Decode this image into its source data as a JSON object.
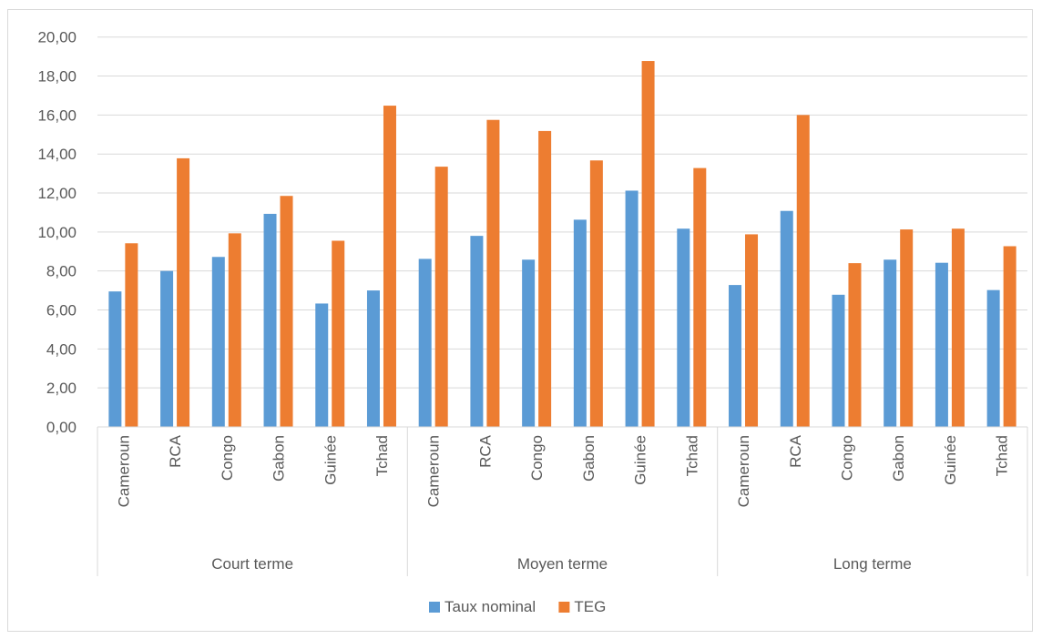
{
  "chart_data": {
    "type": "bar",
    "title": "",
    "xlabel": "",
    "ylabel": "",
    "ylim": [
      0,
      20
    ],
    "yticks": [
      "0,00",
      "2,00",
      "4,00",
      "6,00",
      "8,00",
      "10,00",
      "12,00",
      "14,00",
      "16,00",
      "18,00",
      "20,00"
    ],
    "grid": true,
    "legend_position": "bottom",
    "groups": [
      {
        "name": "Court terme",
        "categories": [
          "Cameroun",
          "RCA",
          "Congo",
          "Gabon",
          "Guinée",
          "Tchad"
        ]
      },
      {
        "name": "Moyen terme",
        "categories": [
          "Cameroun",
          "RCA",
          "Congo",
          "Gabon",
          "Guinée",
          "Tchad"
        ]
      },
      {
        "name": "Long terme",
        "categories": [
          "Cameroun",
          "RCA",
          "Congo",
          "Gabon",
          "Guinée",
          "Tchad"
        ]
      }
    ],
    "series": [
      {
        "name": "Taux nominal",
        "color": "#5b9bd5",
        "values": [
          6.95,
          8.0,
          8.72,
          10.93,
          6.33,
          7.0,
          8.62,
          9.8,
          8.58,
          10.63,
          12.12,
          10.17,
          7.28,
          11.08,
          6.78,
          8.58,
          8.42,
          7.02
        ]
      },
      {
        "name": "TEG",
        "color": "#ed7d31",
        "values": [
          9.42,
          13.78,
          9.93,
          11.85,
          9.55,
          16.48,
          13.35,
          15.75,
          15.18,
          13.67,
          18.77,
          13.28,
          9.88,
          16.0,
          8.4,
          10.13,
          10.17,
          9.27
        ]
      }
    ]
  }
}
